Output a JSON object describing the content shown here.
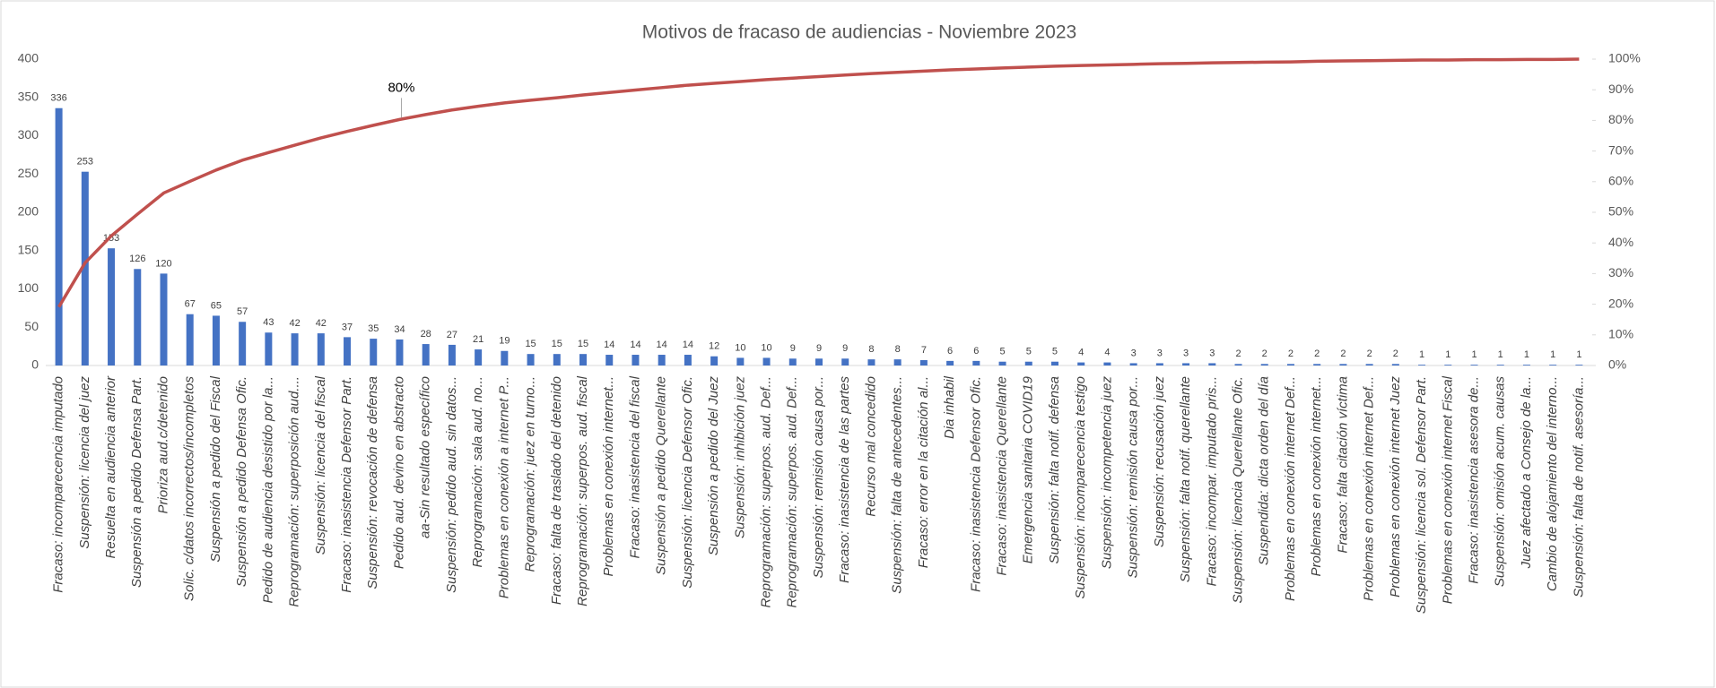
{
  "chart_data": {
    "type": "pareto",
    "title": "Motivos de fracaso de audiencias - Noviembre 2023",
    "categories": [
      "Fracaso: incomparecencia imputado",
      "Suspensión: licencia del juez",
      "Resuelta en audiencia anterior",
      "Suspensión a pedido Defensa Part.",
      "Prioriza aud.c/detenido",
      "Solic. c/datos incorrectos/incompletos",
      "Suspensión a pedido del Fiscal",
      "Suspensión a pedido Defensa Ofic.",
      "Pedido de audiencia desistido por la...",
      "Reprogramación: superposición aud....",
      "Suspensión: licencia del fiscal",
      "Fracaso: inasistencia Defensor Part.",
      "Suspensión: revocación de defensa",
      "Pedido aud. devino en abstracto",
      "aa-Sin resultado específico",
      "Suspensión: pedido aud. sin datos...",
      "Reprogramación: sala aud. no...",
      "Problemas en conexión a internet P...",
      "Reprogramación: juez en turno...",
      "Fracaso: falta de traslado del detenido",
      "Reprogramación: superpos. aud. fiscal",
      "Problemas en conexión internet...",
      "Fracaso: inasistencia del fiscal",
      "Suspensión a pedido Querellante",
      "Suspensión: licencia Defensor Ofic.",
      "Suspensión a pedido del Juez",
      "Suspensión: inhibición juez",
      "Reprogramación: superpos. aud. Def...",
      "Reprogramación: superpos. aud. Def...",
      "Suspensión: remisión causa por...",
      "Fracaso: inasistencia de las partes",
      "Recurso mal concedido",
      "Suspensión: falta de antecedentes...",
      "Fracaso: error en la citación al...",
      "Dia inhabil",
      "Fracaso: inasistencia Defensor Ofic.",
      "Fracaso: inasistencia Querellante",
      "Emergencia sanitaria COVID19",
      "Suspensión: falta notif. defensa",
      "Suspensión: incomparecencia testigo",
      "Suspensión: incompetencia juez",
      "Suspensión: remisión causa por...",
      "Suspensión: recusación juez",
      "Suspensión: falta notif. querellante",
      "Fracaso: incompar. imputado pris...",
      "Suspensión: licencia Querellante Ofic.",
      "Suspendida: dicta orden del día",
      "Problemas en conexión internet Def...",
      "Problemas en conexión internet...",
      "Fracaso: falta citación víctima",
      "Problemas en conexión internet Def...",
      "Problemas en conexión internet Juez",
      "Suspensión: licencia sol. Defensor Part.",
      "Problemas en conexión internet Fiscal",
      "Fracaso: inasistencia asesora de...",
      "Suspensión: omisión acum. causas",
      "Juez afectado a Consejo de la...",
      "Cambio de alojamiento del interno...",
      "Suspensión: falta de notif. asesoría..."
    ],
    "series": [
      {
        "color": "#4472c4",
        "values": [
          336,
          253,
          153,
          126,
          120,
          67,
          65,
          57,
          43,
          42,
          42,
          37,
          35,
          34,
          28,
          27,
          21,
          19,
          15,
          15,
          15,
          14,
          14,
          14,
          14,
          12,
          10,
          10,
          9,
          9,
          9,
          8,
          8,
          7,
          6,
          6,
          5,
          5,
          5,
          4,
          4,
          3,
          3,
          3,
          3,
          2,
          2,
          2,
          2,
          2,
          2,
          2,
          1,
          1,
          1,
          1,
          1,
          1,
          1
        ]
      },
      {
        "color": "#c0504d",
        "axis": "y2",
        "values": [
          19.1,
          33.5,
          42.3,
          49.4,
          56.3,
          60.1,
          63.8,
          67.0,
          69.5,
          71.9,
          74.3,
          76.4,
          78.4,
          80.3,
          81.9,
          83.4,
          84.6,
          85.7,
          86.6,
          87.4,
          88.3,
          89.1,
          89.9,
          90.7,
          91.5,
          92.1,
          92.7,
          93.3,
          93.8,
          94.3,
          94.8,
          95.3,
          95.7,
          96.1,
          96.5,
          96.8,
          97.1,
          97.4,
          97.7,
          97.9,
          98.1,
          98.3,
          98.5,
          98.6,
          98.8,
          98.9,
          99.0,
          99.1,
          99.3,
          99.4,
          99.5,
          99.6,
          99.7,
          99.7,
          99.8,
          99.8,
          99.9,
          99.9,
          100.0
        ]
      }
    ],
    "annotations": [
      "80%"
    ],
    "ylim": [
      0,
      400
    ],
    "yticks": [
      0,
      50,
      100,
      150,
      200,
      250,
      300,
      350,
      400
    ],
    "y2lim": [
      0,
      100
    ],
    "y2ticks": [
      {
        "value": 0,
        "label": "0%"
      },
      {
        "value": 10,
        "label": "10%"
      },
      {
        "value": 20,
        "label": "20%"
      },
      {
        "value": 30,
        "label": "30%"
      },
      {
        "value": 40,
        "label": "40%"
      },
      {
        "value": 50,
        "label": "50%"
      },
      {
        "value": 60,
        "label": "60%"
      },
      {
        "value": 70,
        "label": "70%"
      },
      {
        "value": 80,
        "label": "80%"
      },
      {
        "value": 90,
        "label": "90%"
      },
      {
        "value": 100,
        "label": "100%"
      }
    ],
    "grid": false
  }
}
